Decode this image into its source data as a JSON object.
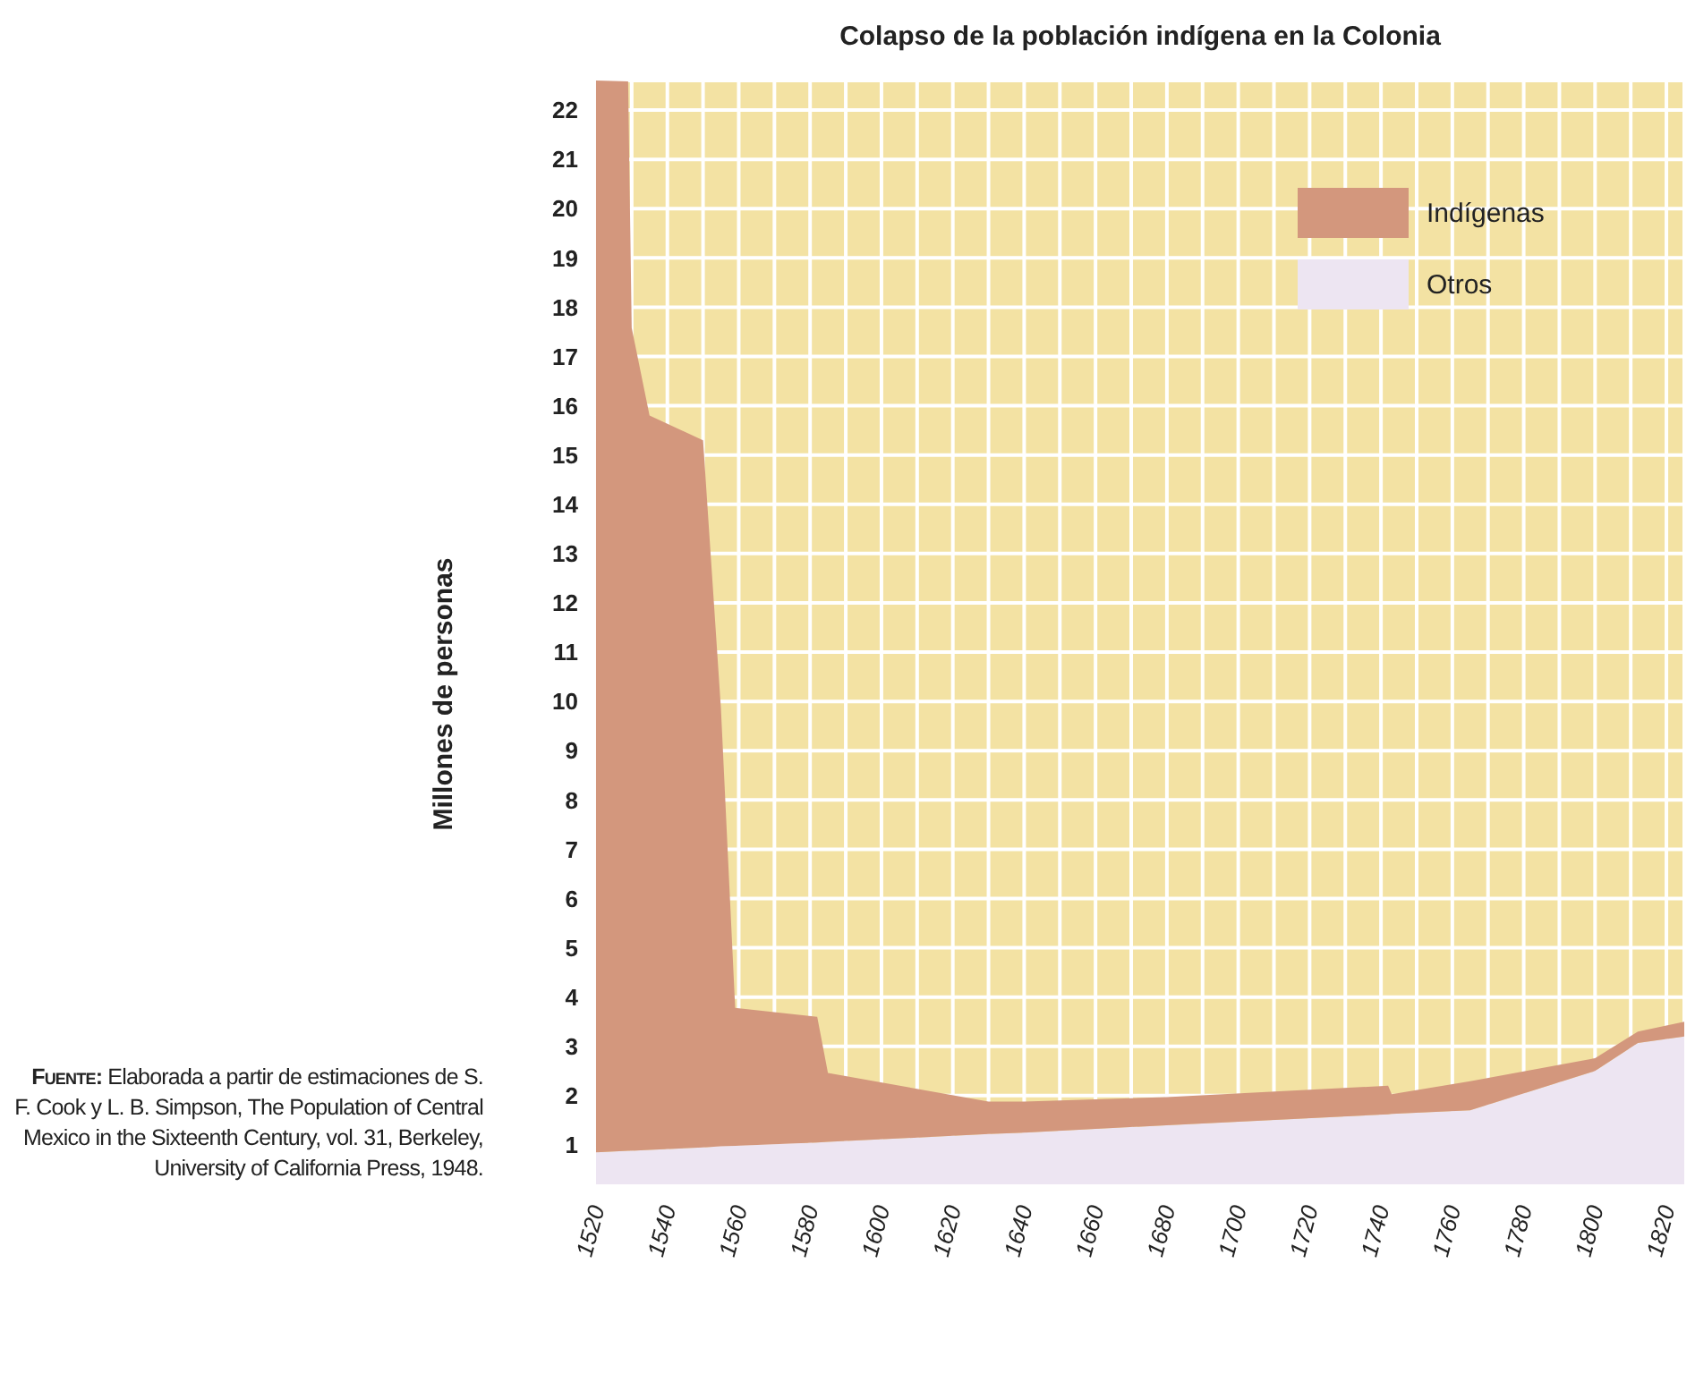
{
  "chart_data": {
    "type": "area",
    "title": "Colapso de la población indígena en la Colonia",
    "ylabel": "Millones de personas",
    "stacked": true,
    "grid": true,
    "legend": "top right",
    "x": [
      1520,
      1529,
      1530,
      1535,
      1550,
      1555,
      1559,
      1582,
      1585,
      1630,
      1640,
      1680,
      1742,
      1743,
      1765,
      1800,
      1812,
      1825
    ],
    "series": [
      {
        "name": "Otros",
        "color": "#ede5f2",
        "values": [
          0.85,
          0.88,
          0.88,
          0.9,
          0.95,
          0.97,
          0.98,
          1.05,
          1.06,
          1.22,
          1.25,
          1.4,
          1.62,
          1.63,
          1.7,
          2.5,
          3.07,
          3.2
        ]
      },
      {
        "name": "Indígenas",
        "color": "#d3977d",
        "values": [
          21.75,
          21.7,
          16.7,
          14.9,
          14.35,
          8.9,
          2.8,
          2.55,
          1.4,
          0.66,
          0.63,
          0.57,
          0.58,
          0.4,
          0.59,
          0.26,
          0.23,
          0.3
        ]
      }
    ],
    "xlim": [
      1519,
      1825
    ],
    "xticks": [
      1520,
      {
        "value": 1530,
        "label": null
      },
      1540,
      {
        "value": 1550,
        "label": null
      },
      1560,
      {
        "value": 1570,
        "label": null
      },
      1580,
      {
        "value": 1590,
        "label": null
      },
      1600,
      {
        "value": 1610,
        "label": null
      },
      1620,
      {
        "value": 1630,
        "label": null
      },
      1640,
      {
        "value": 1650,
        "label": null
      },
      1660,
      {
        "value": 1670,
        "label": null
      },
      1680,
      {
        "value": 1690,
        "label": null
      },
      1700,
      {
        "value": 1710,
        "label": null
      },
      1720,
      {
        "value": 1730,
        "label": null
      },
      1740,
      {
        "value": 1750,
        "label": null
      },
      1760,
      {
        "value": 1770,
        "label": null
      },
      1780,
      {
        "value": 1790,
        "label": null
      },
      1800,
      {
        "value": 1810,
        "label": null
      },
      1820
    ],
    "ylim": [
      0.2,
      22.6
    ],
    "yticks": [
      1,
      2,
      3,
      4,
      5,
      6,
      7,
      8,
      9,
      10,
      11,
      12,
      13,
      14,
      15,
      16,
      17,
      18,
      19,
      20,
      21,
      22
    ],
    "annotations": [
      "Fuente: Elaborada a partir de estimaciones de S. F. Cook y L. B. Simpson, The Population of Central Mexico in the Sixteenth Century, vol. 31, Berkeley, University of California Press, 1948."
    ]
  }
}
